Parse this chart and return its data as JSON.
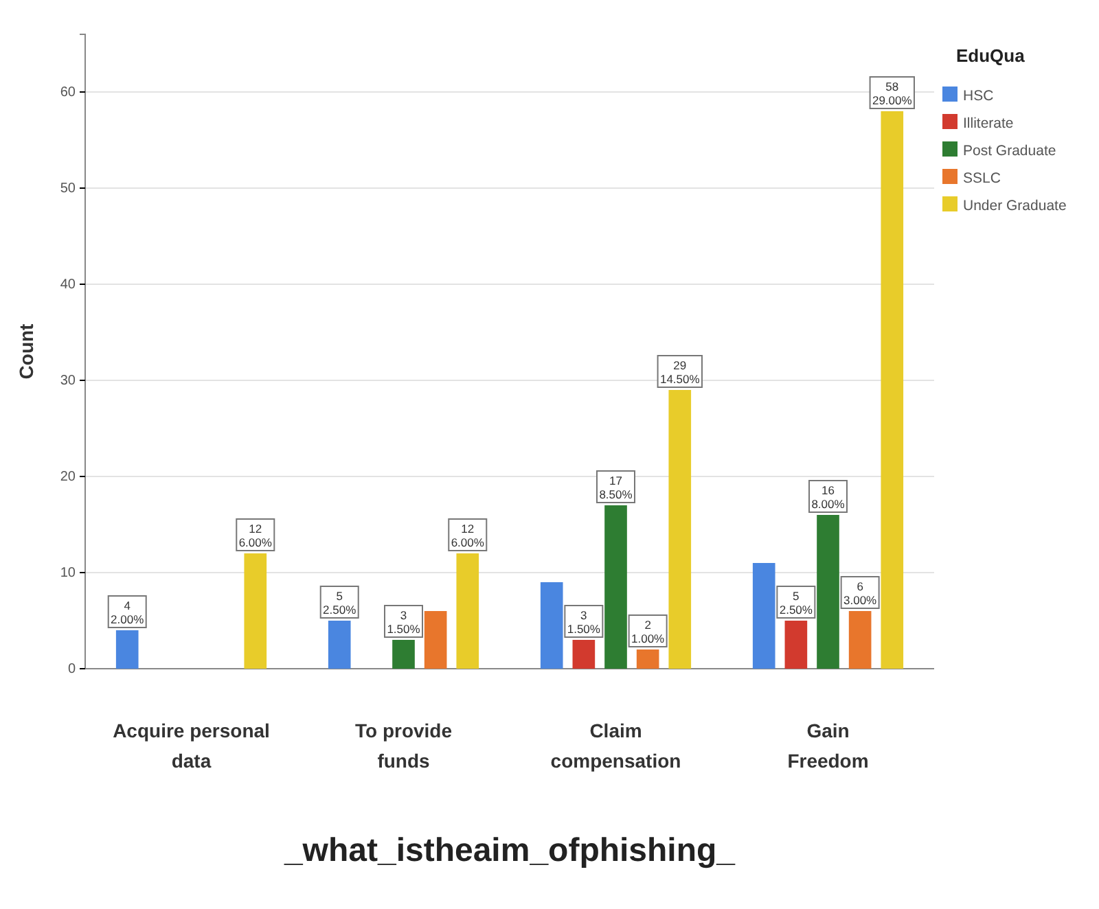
{
  "chart_data": {
    "type": "bar",
    "xlabel": "_what_istheaim_ofphishing_",
    "ylabel": "Count",
    "legend_title": "EduQua",
    "legend": "right",
    "grid": "y",
    "categories": [
      "Acquire personal data",
      "To provide funds",
      "Claim compensation",
      "Gain Freedom"
    ],
    "ylim": [
      0,
      66
    ],
    "yticks": [
      0,
      10,
      20,
      30,
      40,
      50,
      60
    ],
    "series": [
      {
        "name": "HSC",
        "color": "#4a86e0",
        "values": [
          4,
          5,
          9,
          11
        ],
        "value_labels": [
          "4\n2.00%",
          "5\n2.50%",
          null,
          null
        ]
      },
      {
        "name": "Illiterate",
        "color": "#d23a2e",
        "values": [
          null,
          null,
          3,
          5
        ],
        "value_labels": [
          null,
          null,
          "3\n1.50%",
          "5\n2.50%"
        ]
      },
      {
        "name": "Post Graduate",
        "color": "#2e7d32",
        "values": [
          null,
          3,
          17,
          16
        ],
        "value_labels": [
          null,
          "3\n1.50%",
          "17\n8.50%",
          "16\n8.00%"
        ]
      },
      {
        "name": "SSLC",
        "color": "#e8762c",
        "values": [
          null,
          6,
          2,
          6
        ],
        "value_labels": [
          null,
          null,
          "2\n1.00%",
          "6\n3.00%"
        ]
      },
      {
        "name": "Under Graduate",
        "color": "#e8cc2a",
        "values": [
          12,
          12,
          29,
          58
        ],
        "value_labels": [
          "12\n6.00%",
          "12\n6.00%",
          "29\n14.50%",
          "58\n29.00%"
        ]
      }
    ]
  }
}
